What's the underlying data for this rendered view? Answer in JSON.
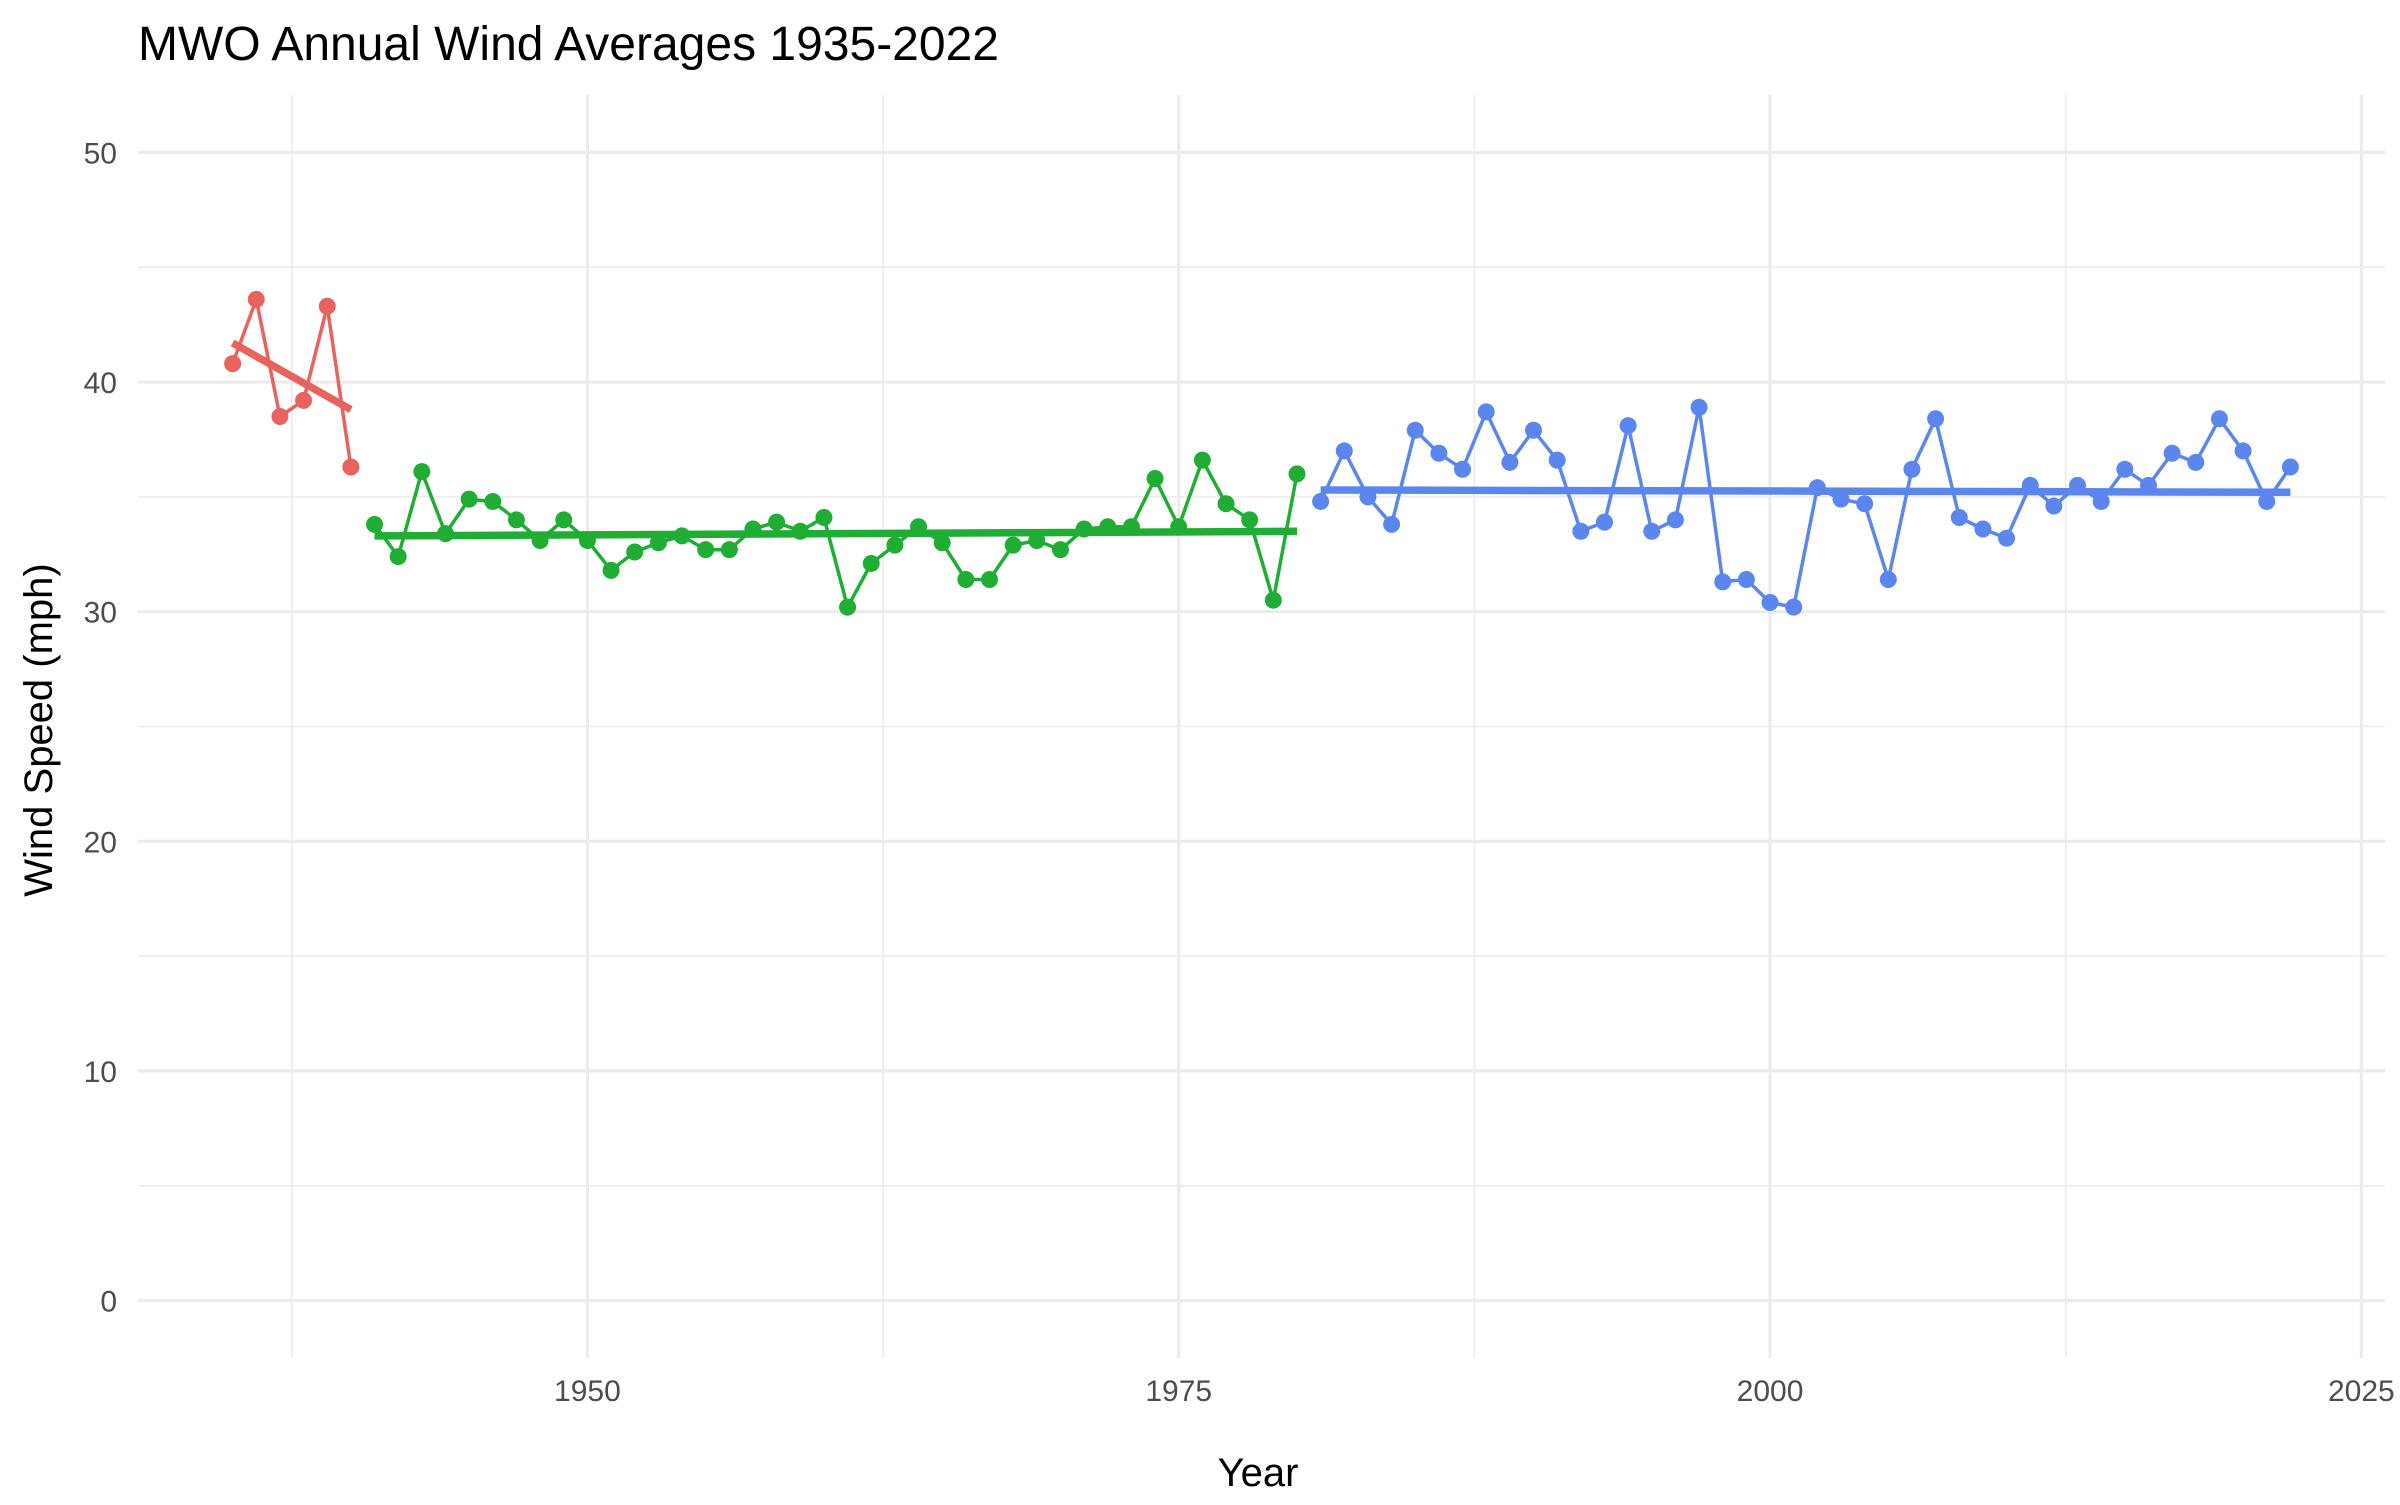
{
  "chart_data": {
    "type": "line",
    "title": "MWO Annual Wind Averages 1935-2022",
    "xlabel": "Year",
    "ylabel": "Wind Speed (mph)",
    "xlim": [
      1931,
      2026
    ],
    "ylim": [
      -2.5,
      52.5
    ],
    "x_ticks": [
      1950,
      1975,
      2000,
      2025
    ],
    "y_ticks": [
      0,
      10,
      20,
      30,
      40,
      50
    ],
    "grid": true,
    "legend": "none",
    "series": [
      {
        "color": "#e8625e",
        "x": [
          1935,
          1936,
          1937,
          1938,
          1939,
          1940
        ],
        "y": [
          40.8,
          43.6,
          38.5,
          39.2,
          43.3,
          36.3
        ],
        "trend": {
          "x": [
            1935,
            1940
          ],
          "y": [
            41.7,
            38.8
          ]
        }
      },
      {
        "color": "#1fad33",
        "x": [
          1941,
          1942,
          1943,
          1944,
          1945,
          1946,
          1947,
          1948,
          1949,
          1950,
          1951,
          1952,
          1953,
          1954,
          1955,
          1956,
          1957,
          1958,
          1959,
          1960,
          1961,
          1962,
          1963,
          1964,
          1965,
          1966,
          1967,
          1968,
          1969,
          1970,
          1971,
          1972,
          1973,
          1974,
          1975,
          1976,
          1977,
          1978,
          1979,
          1980
        ],
        "y": [
          33.8,
          32.4,
          36.1,
          33.4,
          34.9,
          34.8,
          34.0,
          33.1,
          34.0,
          33.1,
          31.8,
          32.6,
          33.0,
          33.3,
          32.7,
          32.7,
          33.6,
          33.9,
          33.5,
          34.1,
          30.2,
          32.1,
          32.9,
          33.7,
          33.0,
          31.4,
          31.4,
          32.9,
          33.1,
          32.7,
          33.6,
          33.7,
          33.7,
          35.8,
          33.7,
          36.6,
          34.7,
          34.0,
          30.5,
          36.0
        ],
        "trend": {
          "x": [
            1941,
            1980
          ],
          "y": [
            33.3,
            33.5
          ]
        }
      },
      {
        "color": "#5b86ee",
        "x": [
          1981,
          1982,
          1983,
          1984,
          1985,
          1986,
          1987,
          1988,
          1989,
          1990,
          1991,
          1992,
          1993,
          1994,
          1995,
          1996,
          1997,
          1998,
          1999,
          2000,
          2001,
          2002,
          2003,
          2004,
          2005,
          2006,
          2007,
          2008,
          2009,
          2010,
          2011,
          2012,
          2013,
          2014,
          2015,
          2016,
          2017,
          2018,
          2019,
          2020,
          2021,
          2022
        ],
        "y": [
          34.8,
          37.0,
          35.0,
          33.8,
          37.9,
          36.9,
          36.2,
          38.7,
          36.5,
          37.9,
          36.6,
          33.5,
          33.9,
          38.1,
          33.5,
          34.0,
          38.9,
          31.3,
          31.4,
          30.4,
          30.2,
          35.4,
          34.9,
          34.7,
          31.4,
          36.2,
          38.4,
          34.1,
          33.6,
          33.2,
          35.5,
          34.6,
          35.5,
          34.8,
          36.2,
          35.5,
          36.9,
          36.5,
          38.4,
          37.0,
          34.8,
          36.3
        ],
        "trend": {
          "x": [
            1981,
            2022
          ],
          "y": [
            35.3,
            35.2
          ]
        }
      }
    ]
  }
}
